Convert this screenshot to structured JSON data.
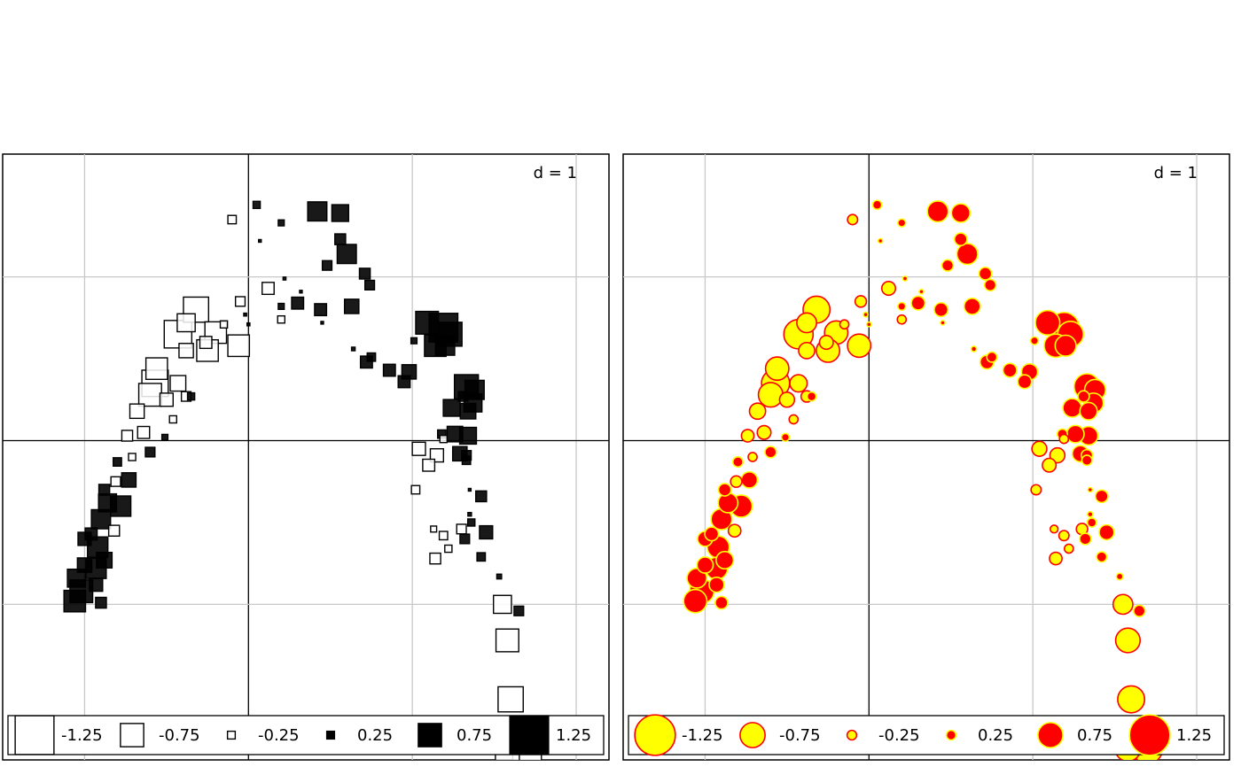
{
  "chart_data": [
    {
      "type": "scatter",
      "marker": "square",
      "d_label": "d = 1",
      "grid": true,
      "xlim": [
        -1.5,
        2.2
      ],
      "ylim": [
        -1.95,
        1.75
      ],
      "x_grid": [
        -1,
        0,
        1,
        2
      ],
      "y_grid": [
        -1,
        0,
        1
      ],
      "fill_positive": "#000000",
      "fill_negative": "#ffffff",
      "stroke": "#000000",
      "legend": {
        "position": "bottom",
        "values": [
          "-1.25",
          "-0.75",
          "-0.25",
          "0.25",
          "0.75",
          "1.25"
        ]
      }
    },
    {
      "type": "scatter",
      "marker": "circle",
      "d_label": "d = 1",
      "grid": true,
      "xlim": [
        -1.5,
        2.2
      ],
      "ylim": [
        -1.95,
        1.75
      ],
      "x_grid": [
        -1,
        0,
        1,
        2
      ],
      "y_grid": [
        -1,
        0,
        1
      ],
      "fill_positive": "#ff0000",
      "fill_negative": "#ffff00",
      "stroke_positive": "#ffff00",
      "stroke_negative": "#ff0000",
      "legend": {
        "position": "bottom",
        "values": [
          "-1.25",
          "-0.75",
          "-0.25",
          "0.25",
          "0.75",
          "1.25"
        ]
      }
    }
  ],
  "points": [
    [
      0.05,
      1.44,
      0.3
    ],
    [
      -0.1,
      1.35,
      -0.35
    ],
    [
      0.07,
      1.22,
      0.05
    ],
    [
      0.2,
      1.33,
      0.25
    ],
    [
      0.42,
      1.4,
      0.8
    ],
    [
      0.56,
      1.39,
      0.7
    ],
    [
      0.56,
      1.23,
      0.45
    ],
    [
      0.6,
      1.14,
      0.8
    ],
    [
      0.48,
      1.07,
      0.4
    ],
    [
      0.71,
      1.02,
      0.45
    ],
    [
      0.74,
      0.95,
      0.4
    ],
    [
      0.22,
      0.99,
      0.12
    ],
    [
      0.32,
      0.91,
      0.1
    ],
    [
      0.3,
      0.84,
      0.5
    ],
    [
      0.44,
      0.8,
      0.5
    ],
    [
      0.12,
      0.93,
      -0.5
    ],
    [
      0.2,
      0.82,
      0.25
    ],
    [
      0.0,
      0.71,
      0.12
    ],
    [
      0.2,
      0.74,
      -0.3
    ],
    [
      -0.05,
      0.85,
      -0.4
    ],
    [
      -0.32,
      0.8,
      -1.05
    ],
    [
      -0.15,
      0.71,
      -0.3
    ],
    [
      -0.02,
      0.77,
      0.12
    ],
    [
      0.45,
      0.72,
      0.05
    ],
    [
      0.63,
      0.82,
      0.6
    ],
    [
      1.09,
      0.72,
      0.95
    ],
    [
      1.14,
      0.58,
      0.9
    ],
    [
      1.23,
      0.65,
      1.0
    ],
    [
      1.19,
      0.69,
      1.2
    ],
    [
      1.01,
      0.61,
      0.25
    ],
    [
      0.64,
      0.56,
      0.15
    ],
    [
      0.72,
      0.48,
      0.5
    ],
    [
      0.75,
      0.51,
      0.35
    ],
    [
      0.86,
      0.43,
      0.5
    ],
    [
      0.95,
      0.36,
      0.5
    ],
    [
      0.98,
      0.42,
      0.6
    ],
    [
      1.2,
      0.58,
      0.8
    ],
    [
      1.33,
      0.33,
      1.0
    ],
    [
      1.38,
      0.31,
      0.8
    ],
    [
      1.31,
      0.27,
      0.4
    ],
    [
      1.24,
      0.2,
      0.7
    ],
    [
      1.34,
      0.18,
      0.65
    ],
    [
      1.37,
      0.23,
      0.75
    ],
    [
      1.18,
      0.04,
      0.35
    ],
    [
      1.19,
      0.01,
      -0.3
    ],
    [
      1.34,
      0.03,
      0.7
    ],
    [
      1.29,
      -0.08,
      0.6
    ],
    [
      1.26,
      0.04,
      0.65
    ],
    [
      1.04,
      -0.05,
      -0.55
    ],
    [
      1.15,
      -0.09,
      -0.55
    ],
    [
      1.1,
      -0.15,
      -0.5
    ],
    [
      1.02,
      -0.3,
      -0.35
    ],
    [
      1.33,
      -0.09,
      0.4
    ],
    [
      1.33,
      -0.12,
      0.35
    ],
    [
      1.35,
      -0.3,
      0.1
    ],
    [
      1.42,
      -0.34,
      0.45
    ],
    [
      1.35,
      -0.45,
      0.15
    ],
    [
      1.36,
      -0.5,
      0.3
    ],
    [
      1.13,
      -0.54,
      -0.25
    ],
    [
      1.3,
      -0.54,
      -0.4
    ],
    [
      1.32,
      -0.6,
      0.4
    ],
    [
      1.19,
      -0.58,
      -0.35
    ],
    [
      1.22,
      -0.66,
      -0.3
    ],
    [
      1.45,
      -0.56,
      0.55
    ],
    [
      1.14,
      -0.72,
      -0.45
    ],
    [
      1.42,
      -0.71,
      0.35
    ],
    [
      1.53,
      -0.83,
      0.2
    ],
    [
      1.55,
      -1.0,
      -0.75
    ],
    [
      1.65,
      -1.04,
      0.4
    ],
    [
      1.58,
      -1.22,
      -0.95
    ],
    [
      1.6,
      -1.58,
      -1.05
    ],
    [
      1.5,
      -1.78,
      -1.2
    ],
    [
      1.56,
      -1.79,
      -1.3
    ],
    [
      1.7,
      -1.88,
      -1.2
    ],
    [
      1.58,
      -1.88,
      -1.0
    ],
    [
      -0.38,
      0.72,
      -0.75
    ],
    [
      -0.26,
      0.6,
      -0.5
    ],
    [
      -0.2,
      0.66,
      -0.9
    ],
    [
      -0.25,
      0.55,
      -0.9
    ],
    [
      -0.06,
      0.58,
      -0.9
    ],
    [
      -0.43,
      0.65,
      -1.15
    ],
    [
      -0.38,
      0.55,
      -0.6
    ],
    [
      -0.56,
      0.44,
      -0.9
    ],
    [
      -0.43,
      0.35,
      -0.65
    ],
    [
      -0.35,
      0.27,
      0.3
    ],
    [
      -0.57,
      0.35,
      -1.1
    ],
    [
      -0.6,
      0.28,
      -0.95
    ],
    [
      -0.68,
      0.18,
      -0.6
    ],
    [
      -0.5,
      0.25,
      -0.55
    ],
    [
      -0.64,
      0.05,
      -0.5
    ],
    [
      -0.51,
      0.02,
      0.25
    ],
    [
      -0.74,
      0.03,
      -0.45
    ],
    [
      -0.6,
      -0.07,
      0.4
    ],
    [
      -0.71,
      -0.1,
      -0.3
    ],
    [
      -0.8,
      -0.13,
      0.35
    ],
    [
      -0.73,
      -0.24,
      0.6
    ],
    [
      -0.81,
      -0.25,
      -0.4
    ],
    [
      -0.88,
      -0.3,
      0.45
    ],
    [
      -0.78,
      -0.4,
      0.85
    ],
    [
      -0.86,
      -0.38,
      0.75
    ],
    [
      -0.9,
      -0.48,
      0.8
    ],
    [
      -0.82,
      -0.55,
      -0.45
    ],
    [
      -0.96,
      -0.57,
      0.5
    ],
    [
      -0.92,
      -0.65,
      0.85
    ],
    [
      -1.0,
      -0.6,
      0.55
    ],
    [
      -0.88,
      -0.73,
      0.65
    ],
    [
      -0.93,
      -0.78,
      0.85
    ],
    [
      -1.0,
      -0.76,
      0.6
    ],
    [
      -1.05,
      -0.84,
      0.75
    ],
    [
      -0.93,
      -0.88,
      0.55
    ],
    [
      -1.02,
      -0.92,
      0.95
    ],
    [
      -1.06,
      -0.98,
      0.9
    ],
    [
      -0.9,
      -0.99,
      0.45
    ],
    [
      -0.46,
      0.13,
      -0.3
    ],
    [
      -0.38,
      0.27,
      -0.4
    ]
  ]
}
